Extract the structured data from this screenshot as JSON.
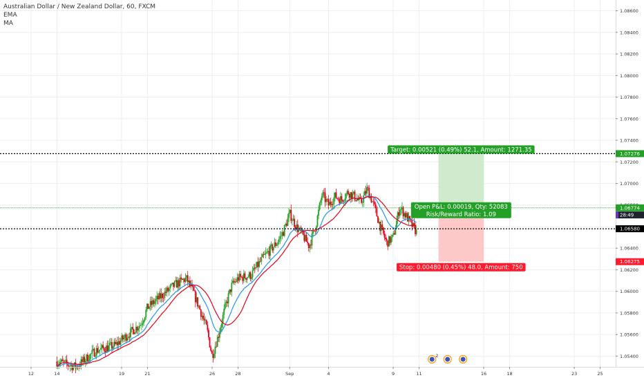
{
  "legend": {
    "title": "Australian Dollar / New Zealand Dollar, 60, FXCM",
    "indicators": [
      "EMA",
      "MA"
    ]
  },
  "chart_data": {
    "type": "candlestick",
    "symbol": "Australian Dollar / New Zealand Dollar",
    "interval": "60",
    "source": "FXCM",
    "ylim": [
      1.053,
      1.087
    ],
    "y_ticks": [
      "1.08600",
      "1.08400",
      "1.08200",
      "1.08000",
      "1.07800",
      "1.07600",
      "1.07400",
      "1.07200",
      "1.07000",
      "1.06800",
      "1.06600",
      "1.06400",
      "1.06200",
      "1.06000",
      "1.05800",
      "1.05600",
      "1.05400"
    ],
    "x_ticks": [
      "12",
      "14",
      "19",
      "21",
      "26",
      "28",
      "Sep",
      "4",
      "9",
      "11",
      "16",
      "18",
      "23",
      "25"
    ],
    "x_tick_days": [
      12,
      14,
      19,
      21,
      26,
      28,
      32,
      35,
      40,
      42,
      47,
      49,
      54,
      56
    ],
    "x_range_days": [
      9.6,
      57.2
    ],
    "price_path": [
      [
        14.0,
        1.0535
      ],
      [
        15.5,
        1.053
      ],
      [
        17.0,
        1.0545
      ],
      [
        18.5,
        1.055
      ],
      [
        19.5,
        1.056
      ],
      [
        20.5,
        1.057
      ],
      [
        21.0,
        1.0585
      ],
      [
        22.0,
        1.0595
      ],
      [
        23.0,
        1.0605
      ],
      [
        24.0,
        1.0612
      ],
      [
        24.5,
        1.06
      ],
      [
        25.0,
        1.0585
      ],
      [
        25.6,
        1.0565
      ],
      [
        26.0,
        1.054
      ],
      [
        26.5,
        1.056
      ],
      [
        27.0,
        1.0585
      ],
      [
        27.5,
        1.0605
      ],
      [
        28.0,
        1.0612
      ],
      [
        29.0,
        1.0615
      ],
      [
        30.0,
        1.0632
      ],
      [
        31.0,
        1.0645
      ],
      [
        31.5,
        1.0655
      ],
      [
        32.0,
        1.0672
      ],
      [
        32.5,
        1.066
      ],
      [
        33.0,
        1.0652
      ],
      [
        33.5,
        1.0642
      ],
      [
        34.0,
        1.066
      ],
      [
        34.5,
        1.069
      ],
      [
        35.0,
        1.068
      ],
      [
        35.5,
        1.0688
      ],
      [
        36.0,
        1.0685
      ],
      [
        36.5,
        1.0692
      ],
      [
        37.0,
        1.0688
      ],
      [
        37.5,
        1.0682
      ],
      [
        38.0,
        1.0695
      ],
      [
        38.5,
        1.068
      ],
      [
        39.0,
        1.066
      ],
      [
        39.5,
        1.0645
      ],
      [
        40.0,
        1.065
      ],
      [
        40.5,
        1.0678
      ],
      [
        41.0,
        1.067
      ],
      [
        41.5,
        1.066
      ],
      [
        41.8,
        1.0655
      ]
    ],
    "series": [
      {
        "name": "EMA",
        "color": "#2196f3"
      },
      {
        "name": "MA",
        "color": "#e3001b"
      }
    ],
    "price_lines": [
      {
        "value": 1.07276,
        "label": "1.07276",
        "color": "#24a028",
        "style": "dotted-black"
      },
      {
        "value": 1.06774,
        "label": "1.06774",
        "color": "#24a028",
        "style": "dotted-green"
      },
      {
        "value": 1.0658,
        "label": "1.06580",
        "color": "#000000",
        "style": "dotted-black"
      },
      {
        "value": 1.06275,
        "label": "1.06275",
        "color": "#ff1a2e",
        "style": "none"
      }
    ],
    "countdown": {
      "value": 1.06708,
      "label": "28:49"
    },
    "position": {
      "type": "long",
      "entry": 1.06755,
      "target": 1.07276,
      "stop": 1.06275,
      "start_day": 43.5,
      "end_day": 47.0,
      "target_label": "Target: 0.00521 (0.49%) 52.1, Amount: 1271.35",
      "pnl_label": "Open P&L: 0.00019, Qty: 52083",
      "ratio_label": "Risk/Reward Ratio: 1.09",
      "stop_label": "Stop: 0.00480 (0.45%) 48.0, Amount: 750"
    },
    "events": [
      {
        "day": 43.0,
        "icon": "flag-icon",
        "count": "2"
      },
      {
        "day": 44.2,
        "icon": "flag-icon",
        "count": ""
      },
      {
        "day": 45.4,
        "icon": "flag-icon",
        "count": ""
      }
    ],
    "colors": {
      "up": "#24a028",
      "down": "#e3001b",
      "grid": "#eeeeee",
      "axis_text": "#333333",
      "profit_zone": "#cfeacd",
      "loss_zone": "#fcc8c8"
    }
  }
}
